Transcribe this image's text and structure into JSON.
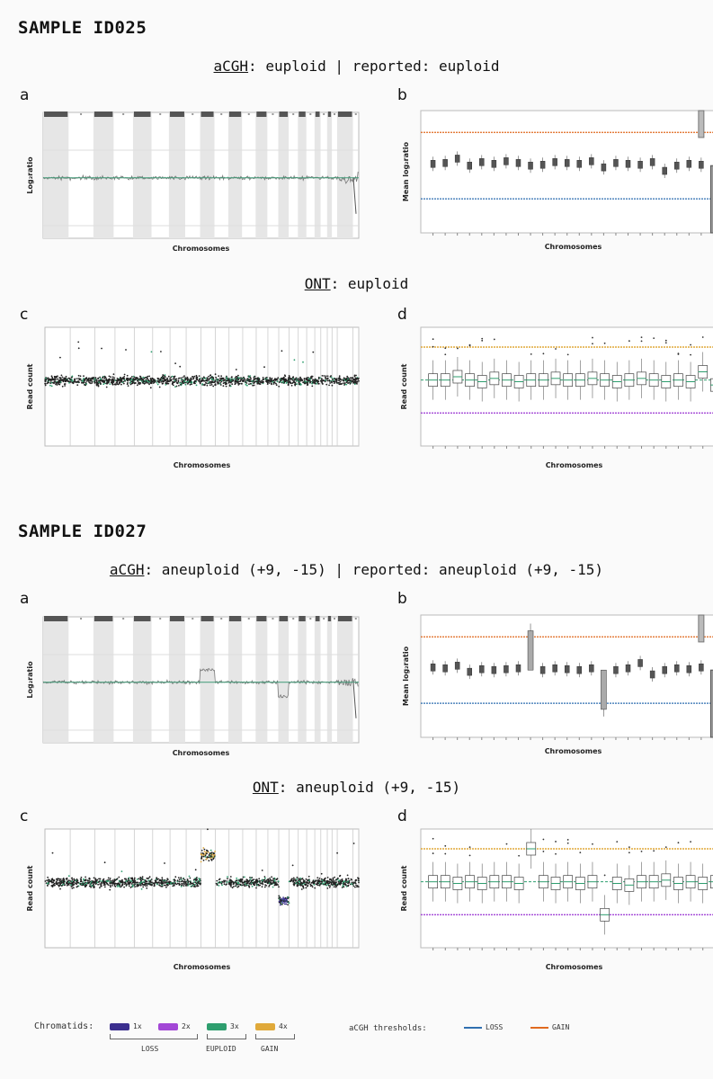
{
  "samples": [
    {
      "title": "SAMPLE ID025",
      "acgh": {
        "label": "aCGH",
        "sep": ":",
        "value": "euploid",
        "divider": "|",
        "reported_label": "reported",
        "reported_value": "euploid"
      },
      "ont": {
        "label": "ONT",
        "sep": ":",
        "value": "euploid"
      }
    },
    {
      "title": "SAMPLE ID027",
      "acgh": {
        "label": "aCGH",
        "sep": ":",
        "value": "aneuploid (+9, -15)",
        "divider": "|",
        "reported_label": "reported",
        "reported_value": "aneuploid (+9, -15)"
      },
      "ont": {
        "label": "ONT",
        "sep": ":",
        "value": "aneuploid (+9, -15)"
      }
    }
  ],
  "panel_letters": {
    "a": "a",
    "b": "b",
    "c": "c",
    "d": "d"
  },
  "legend": {
    "chromatids_label": "Chromatids:",
    "items": [
      {
        "text": "1x",
        "color": "#3b2f8f"
      },
      {
        "text": "2x",
        "color": "#a347d6"
      },
      {
        "text": "3x",
        "color": "#2e9e6e"
      },
      {
        "text": "4x",
        "color": "#e0a93a"
      }
    ],
    "groups": {
      "loss": "LOSS",
      "euploid": "EUPLOID",
      "gain": "GAIN"
    },
    "acgh_label": "aCGH thresholds:",
    "thresholds": [
      {
        "text": "LOSS",
        "color": "#2f6fb0"
      },
      {
        "text": "GAIN",
        "color": "#e06a1f"
      }
    ]
  },
  "chart_data": [
    {
      "id": "ID025-a",
      "type": "scatter",
      "xlabel": "Chromosomes",
      "ylabel": "Log₂ratio",
      "profile": "flat"
    },
    {
      "id": "ID025-b",
      "type": "box",
      "xlabel": "Chromosomes",
      "ylabel": "Mean log₂ratio",
      "thresholds": {
        "gain": 0.38,
        "loss": -0.38
      },
      "means": [
        0.02,
        0.03,
        0.08,
        0.0,
        0.04,
        0.02,
        0.05,
        0.03,
        0.0,
        0.01,
        0.04,
        0.03,
        0.02,
        0.05,
        -0.02,
        0.03,
        0.02,
        0.01,
        0.04,
        -0.06,
        0.0,
        0.02,
        0.01,
        -0.5
      ]
    },
    {
      "id": "ID025-c",
      "type": "scatter",
      "xlabel": "Chromosomes",
      "ylabel": "Read count",
      "profile": "flat"
    },
    {
      "id": "ID025-d",
      "type": "box",
      "xlabel": "Chromosomes",
      "ylabel": "Read count",
      "medians": [
        2,
        2,
        2.1,
        2,
        1.95,
        2.05,
        2,
        1.95,
        2,
        2,
        2.05,
        2,
        2,
        2.05,
        2,
        1.95,
        2,
        2.05,
        2,
        1.95,
        2,
        1.95,
        2.25,
        1.85
      ]
    },
    {
      "id": "ID027-a",
      "type": "scatter",
      "xlabel": "Chromosomes",
      "ylabel": "Log₂ratio",
      "profile": "ab9-15"
    },
    {
      "id": "ID027-b",
      "type": "box",
      "xlabel": "Chromosomes",
      "ylabel": "Mean log₂ratio",
      "thresholds": {
        "gain": 0.38,
        "loss": -0.38
      },
      "means": [
        0.03,
        0.02,
        0.05,
        -0.02,
        0.01,
        0.0,
        0.01,
        0.02,
        0.45,
        0.0,
        0.02,
        0.01,
        0.0,
        0.02,
        -0.45,
        0.0,
        0.02,
        0.08,
        -0.05,
        0.0,
        0.02,
        0.01,
        0.03,
        -0.5
      ]
    },
    {
      "id": "ID027-c",
      "type": "scatter",
      "xlabel": "Chromosomes",
      "ylabel": "Read count",
      "profile": "ab9-15"
    },
    {
      "id": "ID027-d",
      "type": "box",
      "xlabel": "Chromosomes",
      "ylabel": "Read count",
      "medians": [
        2,
        2,
        1.95,
        2,
        1.95,
        2,
        2,
        1.95,
        3,
        2,
        1.95,
        2,
        1.95,
        2,
        1,
        1.95,
        1.9,
        2,
        2,
        2.05,
        1.95,
        2,
        1.95,
        2
      ]
    }
  ]
}
